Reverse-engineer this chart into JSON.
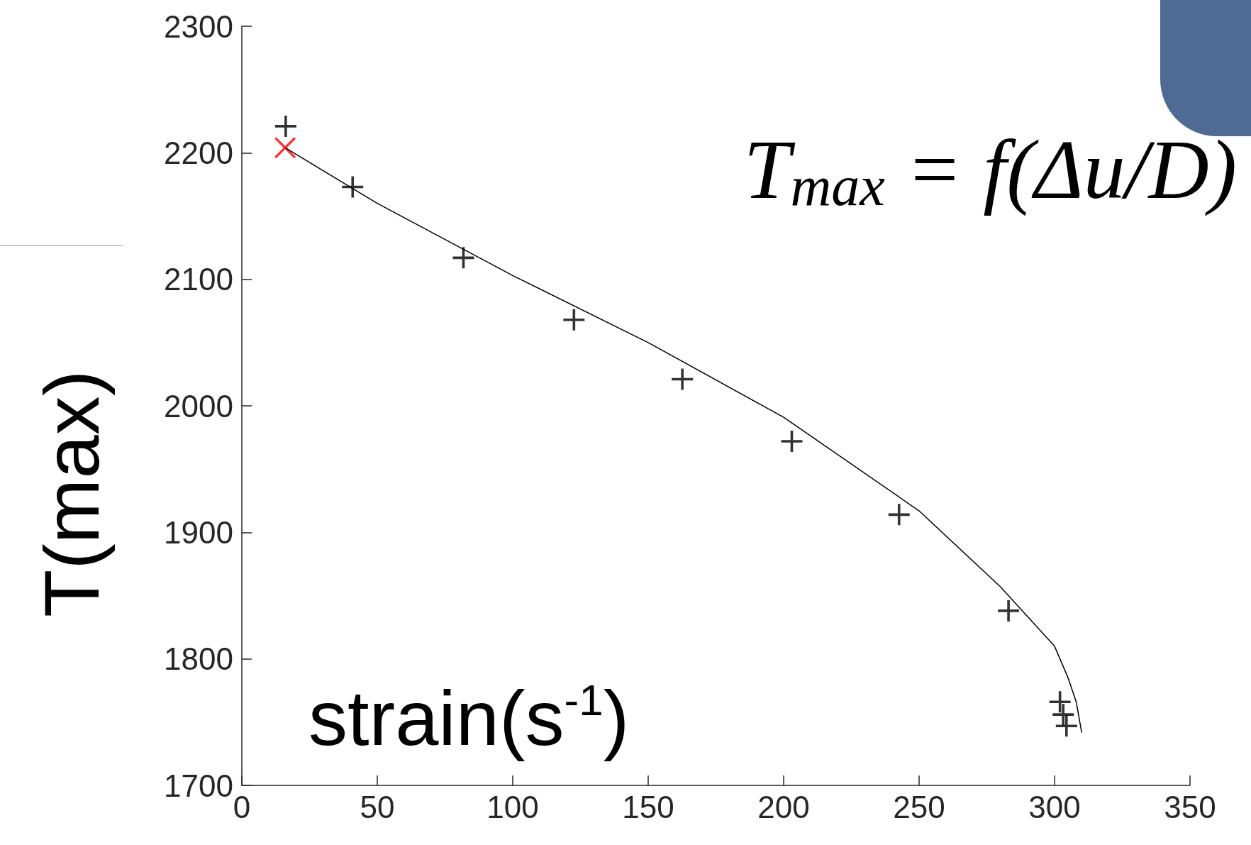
{
  "chart_data": {
    "type": "scatter",
    "xlabel": "strain(s$^{-1}$)",
    "ylabel": "T(max)",
    "annotations": [
      "T$_{max}$ = f(Δu/D)"
    ],
    "xlim": [
      0,
      350
    ],
    "xticks": [
      0,
      50,
      100,
      150,
      200,
      250,
      300,
      350
    ],
    "ylim": [
      1700,
      2300
    ],
    "yticks": [
      1700,
      1800,
      1900,
      2000,
      2100,
      2200,
      2300
    ],
    "grid": false,
    "series": [
      {
        "marker": "cross",
        "color": "#000000",
        "x": [
          16.2,
          40.9,
          81.8,
          122.6,
          162.6,
          203,
          242.6,
          283,
          302,
          303.2,
          304.4
        ],
        "values": [
          2221,
          2173,
          2117,
          2068,
          2021,
          1972,
          1914,
          1838,
          1766,
          1756,
          1747
        ]
      },
      {
        "marker": "x",
        "color": "#ff0000",
        "x": [
          16
        ],
        "values": [
          2204
        ]
      },
      {
        "type": "line",
        "marker": "none",
        "color": "#000000",
        "x": [
          16,
          50,
          100,
          150,
          200,
          250,
          280,
          300,
          305,
          308,
          310
        ],
        "values": [
          2204,
          2160,
          2103,
          2050,
          1991,
          1917,
          1857,
          1810,
          1785,
          1766,
          1742
        ]
      }
    ]
  }
}
